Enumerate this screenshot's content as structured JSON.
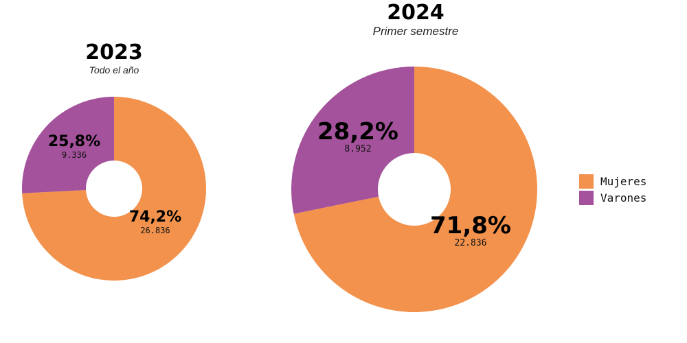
{
  "colors": {
    "mujeres": "#F2924D",
    "varones": "#A3529B"
  },
  "chart_data": [
    {
      "type": "pie",
      "title": "2023",
      "subtitle": "Todo el año",
      "categories": [
        "Mujeres",
        "Varones"
      ],
      "values": [
        74.2,
        25.8
      ],
      "value_labels": [
        "74,2%",
        "25,8%"
      ],
      "counts": [
        "26.836",
        "9.336"
      ]
    },
    {
      "type": "pie",
      "title": "2024",
      "subtitle": "Primer semestre",
      "categories": [
        "Mujeres",
        "Varones"
      ],
      "values": [
        71.8,
        28.2
      ],
      "value_labels": [
        "71,8%",
        "28,2%"
      ],
      "counts": [
        "22.836",
        "8.952"
      ]
    }
  ],
  "legend": {
    "items": [
      {
        "label": "Mujeres",
        "color": "#F2924D"
      },
      {
        "label": "Varones",
        "color": "#A3529B"
      }
    ]
  }
}
